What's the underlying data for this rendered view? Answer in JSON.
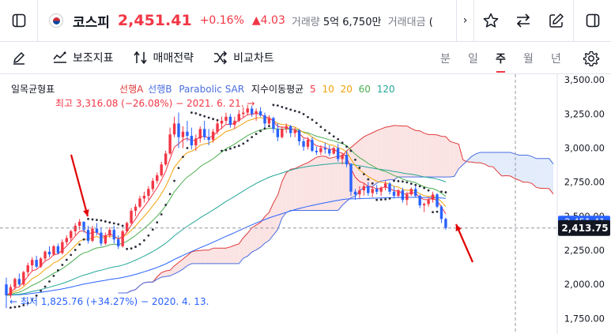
{
  "header": {
    "symbol_name": "코스피",
    "price": "2,451.41",
    "change_pct": "+0.16%",
    "change_abs": "▲4.03",
    "volume_label": "거래량",
    "volume_value": "5억 6,750만",
    "amount_label": "거래대금",
    "amount_value": "("
  },
  "toolbar": {
    "indicators_label": "보조지표",
    "strategy_label": "매매전략",
    "compare_label": "비교차트",
    "periods": [
      "분",
      "일",
      "주",
      "월",
      "년"
    ],
    "active_period": "주"
  },
  "legend": {
    "ichimoku": "일목균형표",
    "span_a": "선행A",
    "span_b": "선행B",
    "psar": "Parabolic SAR",
    "ema_label": "지수이동평균",
    "ema_periods": [
      "5",
      "10",
      "20",
      "60",
      "120"
    ]
  },
  "colors": {
    "up": "#f23645",
    "down": "#2962ff",
    "span_a": "#e03b3b",
    "span_b": "#4a6ee0",
    "psar": "#2a2e39",
    "ema5": "#f23645",
    "ema10": "#f0a30a",
    "ema20": "#4caf50",
    "ema60": "#26a69a",
    "ema120": "#2962ff",
    "cloud_bull": "#fbe3e3",
    "cloud_bear": "#e3ecfb"
  },
  "chart_data": {
    "type": "candlestick",
    "y_ticks": [
      "3,500.00",
      "3,250.00",
      "3,000.00",
      "2,750.00",
      "2,500.00",
      "2,250.00",
      "2,000.00",
      "1,750.00"
    ],
    "y_tick_values": [
      3500,
      3250,
      3000,
      2750,
      2500,
      2250,
      2000,
      1750
    ],
    "ylim": [
      1700,
      3530
    ],
    "current_price_label": "2,413.75",
    "current_price": 2413.75,
    "hidden_price_label": "2,451.41",
    "high_annotation": "최고 3,316.08 (−26.08%) − 2021. 6. 21. →",
    "low_annotation": "← 최저 1,825.76 (+34.27%) − 2020. 4. 13.",
    "grid": false,
    "candles": [
      [
        2000,
        2050,
        1825,
        1920
      ],
      [
        1920,
        2000,
        1900,
        1980
      ],
      [
        1980,
        2050,
        1960,
        2040
      ],
      [
        2040,
        2080,
        1990,
        2000
      ],
      [
        2000,
        2100,
        1990,
        2090
      ],
      [
        2090,
        2160,
        2060,
        2140
      ],
      [
        2140,
        2200,
        2100,
        2180
      ],
      [
        2180,
        2210,
        2120,
        2130
      ],
      [
        2130,
        2200,
        2120,
        2190
      ],
      [
        2190,
        2250,
        2170,
        2240
      ],
      [
        2240,
        2280,
        2200,
        2220
      ],
      [
        2220,
        2290,
        2210,
        2280
      ],
      [
        2280,
        2300,
        2220,
        2230
      ],
      [
        2230,
        2330,
        2220,
        2310
      ],
      [
        2310,
        2360,
        2290,
        2340
      ],
      [
        2340,
        2400,
        2320,
        2390
      ],
      [
        2390,
        2450,
        2360,
        2430
      ],
      [
        2430,
        2480,
        2400,
        2460
      ],
      [
        2460,
        2460,
        2380,
        2400
      ],
      [
        2400,
        2430,
        2300,
        2320
      ],
      [
        2320,
        2430,
        2310,
        2410
      ],
      [
        2410,
        2450,
        2360,
        2380
      ],
      [
        2380,
        2420,
        2280,
        2300
      ],
      [
        2300,
        2380,
        2290,
        2360
      ],
      [
        2360,
        2420,
        2340,
        2400
      ],
      [
        2400,
        2430,
        2300,
        2330
      ],
      [
        2330,
        2360,
        2260,
        2280
      ],
      [
        2280,
        2400,
        2270,
        2390
      ],
      [
        2390,
        2460,
        2380,
        2450
      ],
      [
        2450,
        2560,
        2440,
        2540
      ],
      [
        2540,
        2590,
        2500,
        2570
      ],
      [
        2570,
        2650,
        2560,
        2630
      ],
      [
        2630,
        2680,
        2600,
        2650
      ],
      [
        2650,
        2720,
        2620,
        2700
      ],
      [
        2700,
        2780,
        2680,
        2760
      ],
      [
        2760,
        2820,
        2740,
        2800
      ],
      [
        2800,
        2900,
        2790,
        2880
      ],
      [
        2880,
        2980,
        2870,
        2960
      ],
      [
        2960,
        3150,
        2950,
        3100
      ],
      [
        3100,
        3230,
        3080,
        3180
      ],
      [
        3180,
        3260,
        3000,
        3080
      ],
      [
        3080,
        3160,
        3000,
        3120
      ],
      [
        3120,
        3200,
        3050,
        3090
      ],
      [
        3090,
        3150,
        2990,
        3020
      ],
      [
        3020,
        3100,
        2980,
        3070
      ],
      [
        3070,
        3160,
        3040,
        3140
      ],
      [
        3140,
        3200,
        3060,
        3080
      ],
      [
        3080,
        3140,
        3020,
        3060
      ],
      [
        3060,
        3140,
        3040,
        3120
      ],
      [
        3120,
        3200,
        3100,
        3180
      ],
      [
        3180,
        3230,
        3140,
        3200
      ],
      [
        3200,
        3260,
        3180,
        3230
      ],
      [
        3230,
        3250,
        3150,
        3170
      ],
      [
        3170,
        3230,
        3140,
        3200
      ],
      [
        3200,
        3280,
        3190,
        3250
      ],
      [
        3250,
        3300,
        3220,
        3260
      ],
      [
        3260,
        3316,
        3240,
        3290
      ],
      [
        3290,
        3310,
        3230,
        3250
      ],
      [
        3250,
        3290,
        3200,
        3270
      ],
      [
        3270,
        3300,
        3230,
        3240
      ],
      [
        3240,
        3260,
        3150,
        3180
      ],
      [
        3180,
        3240,
        3170,
        3220
      ],
      [
        3220,
        3230,
        3110,
        3140
      ],
      [
        3140,
        3180,
        3050,
        3080
      ],
      [
        3080,
        3160,
        3070,
        3140
      ],
      [
        3140,
        3180,
        3110,
        3160
      ],
      [
        3160,
        3170,
        3080,
        3110
      ],
      [
        3110,
        3150,
        3080,
        3130
      ],
      [
        3130,
        3140,
        3020,
        3050
      ],
      [
        3050,
        3070,
        2980,
        3010
      ],
      [
        3010,
        3080,
        2990,
        3060
      ],
      [
        3060,
        3080,
        2970,
        2980
      ],
      [
        2980,
        3010,
        2950,
        2970
      ],
      [
        2970,
        3020,
        2950,
        3000
      ],
      [
        3000,
        3040,
        2960,
        2990
      ],
      [
        2990,
        3020,
        2940,
        2960
      ],
      [
        2960,
        3010,
        2950,
        3000
      ],
      [
        3000,
        3030,
        2900,
        2920
      ],
      [
        2920,
        2960,
        2880,
        2950
      ],
      [
        2950,
        2980,
        2860,
        2880
      ],
      [
        2880,
        2890,
        2650,
        2680
      ],
      [
        2680,
        2700,
        2620,
        2660
      ],
      [
        2660,
        2720,
        2630,
        2690
      ],
      [
        2690,
        2740,
        2650,
        2720
      ],
      [
        2720,
        2750,
        2650,
        2670
      ],
      [
        2670,
        2720,
        2640,
        2700
      ],
      [
        2700,
        2730,
        2660,
        2680
      ],
      [
        2680,
        2720,
        2650,
        2710
      ],
      [
        2710,
        2760,
        2690,
        2740
      ],
      [
        2740,
        2750,
        2660,
        2680
      ],
      [
        2680,
        2720,
        2630,
        2650
      ],
      [
        2650,
        2700,
        2640,
        2690
      ],
      [
        2690,
        2710,
        2600,
        2620
      ],
      [
        2620,
        2680,
        2580,
        2660
      ],
      [
        2660,
        2710,
        2650,
        2700
      ],
      [
        2700,
        2720,
        2640,
        2650
      ],
      [
        2650,
        2660,
        2560,
        2580
      ],
      [
        2580,
        2600,
        2530,
        2590
      ],
      [
        2590,
        2640,
        2570,
        2620
      ],
      [
        2620,
        2680,
        2600,
        2660
      ],
      [
        2660,
        2670,
        2560,
        2570
      ],
      [
        2570,
        2580,
        2450,
        2480
      ],
      [
        2480,
        2490,
        2400,
        2413.75
      ]
    ]
  }
}
